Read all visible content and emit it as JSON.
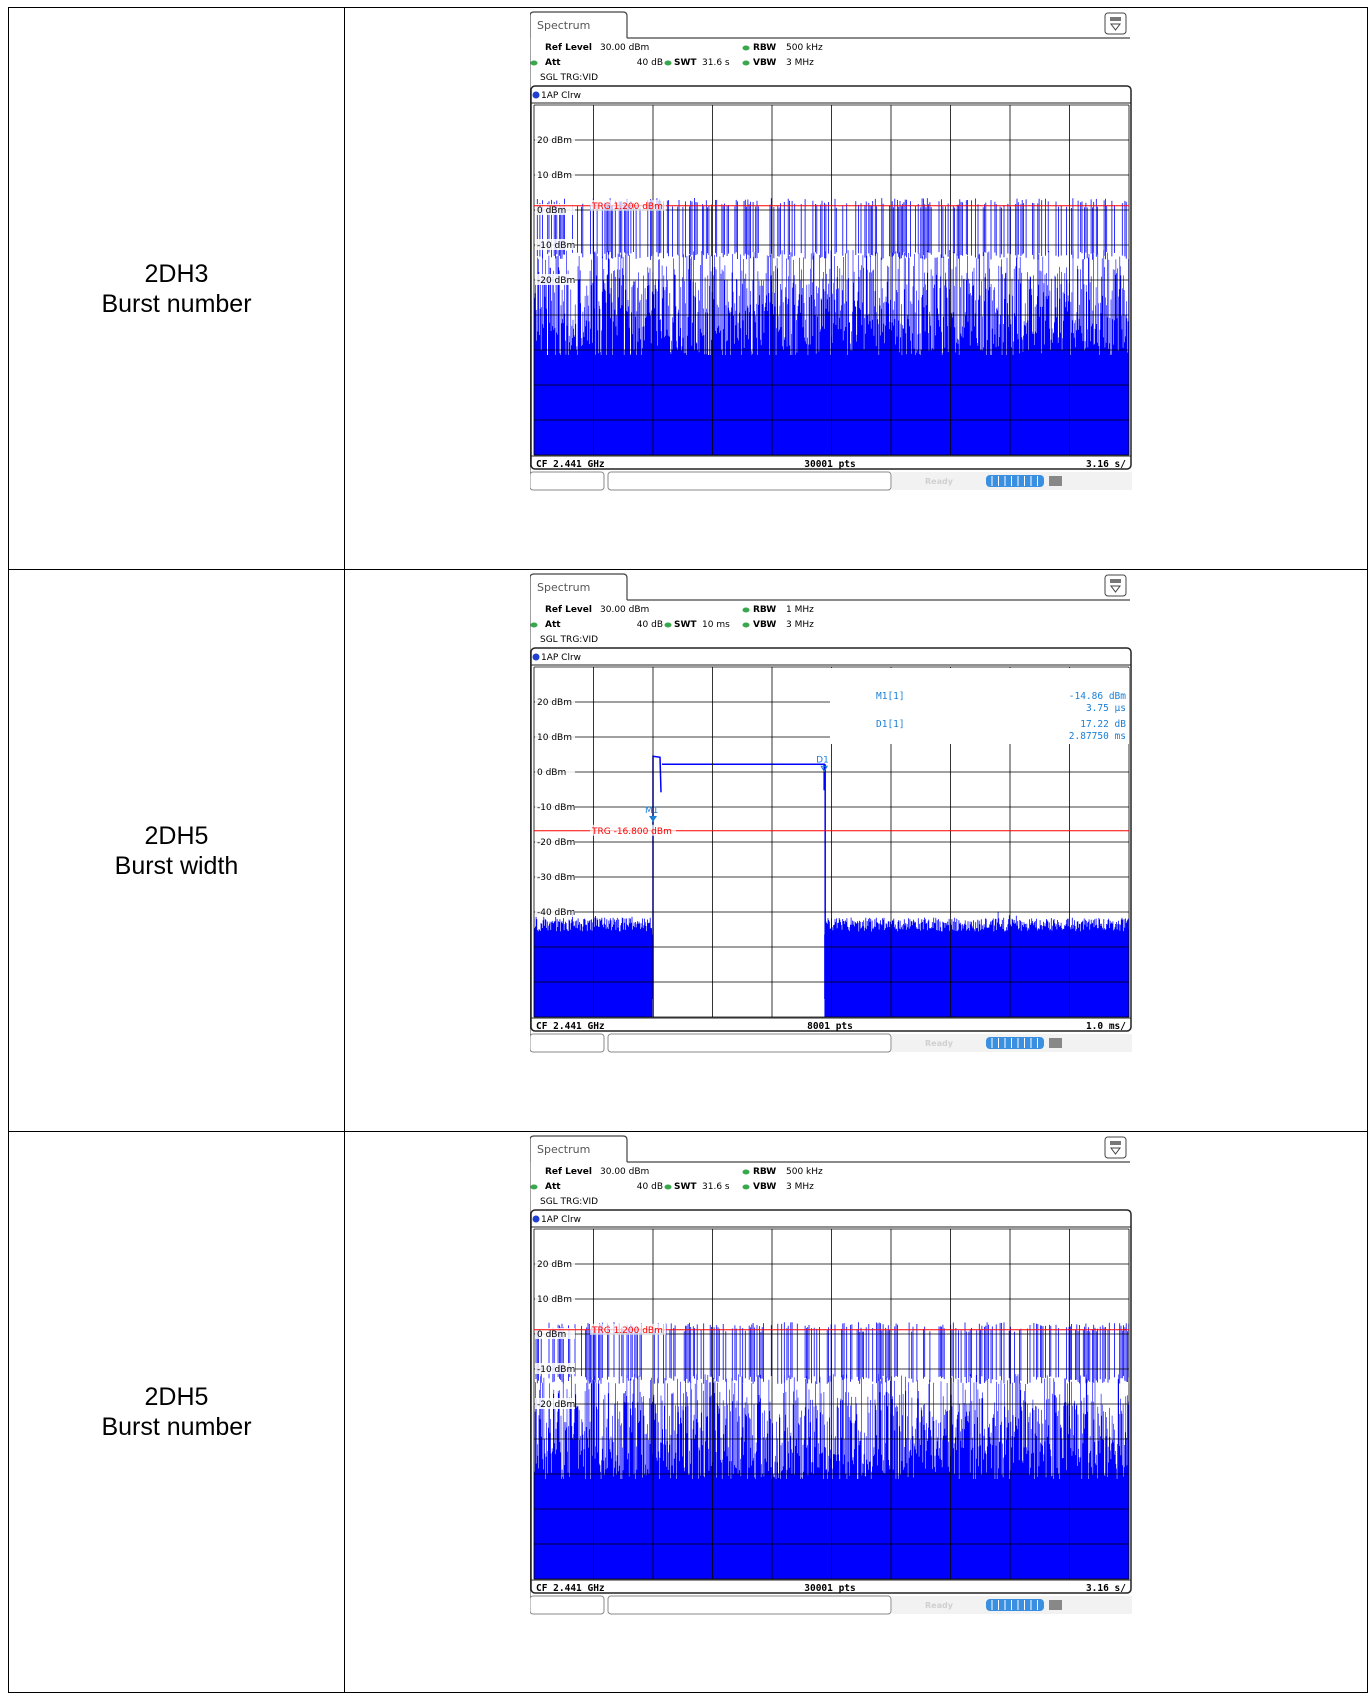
{
  "rows": [
    {
      "label_line1": "2DH3",
      "label_line2": "Burst number",
      "screen": {
        "tab": "Spectrum",
        "ref_level_label": "Ref Level",
        "ref_level_value": "30.00 dBm",
        "att_label": "Att",
        "att_value": "40 dB",
        "swt_label": "SWT",
        "swt_value": "31.6 s",
        "rbw_label": "RBW",
        "rbw_value": "500 kHz",
        "vbw_label": "VBW",
        "vbw_value": "3 MHz",
        "trigger_mode": "SGL TRG:VID",
        "trace_label": "1AP Clrw",
        "footer_left": "CF 2.441 GHz",
        "footer_center": "30001 pts",
        "footer_right": "3.16 s/",
        "status": "Ready"
      }
    },
    {
      "label_line1": "2DH5",
      "label_line2": "Burst width",
      "screen": {
        "tab": "Spectrum",
        "ref_level_label": "Ref Level",
        "ref_level_value": "30.00 dBm",
        "att_label": "Att",
        "att_value": "40 dB",
        "swt_label": "SWT",
        "swt_value": "10 ms",
        "rbw_label": "RBW",
        "rbw_value": "1 MHz",
        "vbw_label": "VBW",
        "vbw_value": "3 MHz",
        "trigger_mode": "SGL TRG:VID",
        "trace_label": "1AP Clrw",
        "footer_left": "CF 2.441 GHz",
        "footer_center": "8001 pts",
        "footer_right": "1.0 ms/",
        "status": "Ready",
        "marker_table": [
          {
            "name": "M1[1]",
            "value1": "-14.86 dBm",
            "value2": "3.75 µs"
          },
          {
            "name": "D1[1]",
            "value1": "17.22 dB",
            "value2": "2.87750 ms"
          }
        ]
      }
    },
    {
      "label_line1": "2DH5",
      "label_line2": "Burst number",
      "screen": {
        "tab": "Spectrum",
        "ref_level_label": "Ref Level",
        "ref_level_value": "30.00 dBm",
        "att_label": "Att",
        "att_value": "40 dB",
        "swt_label": "SWT",
        "swt_value": "31.6 s",
        "rbw_label": "RBW",
        "rbw_value": "500 kHz",
        "vbw_label": "VBW",
        "vbw_value": "3 MHz",
        "trigger_mode": "SGL TRG:VID",
        "trace_label": "1AP Clrw",
        "footer_left": "CF 2.441 GHz",
        "footer_center": "30001 pts",
        "footer_right": "3.16 s/",
        "status": "Ready"
      }
    }
  ],
  "chart_data": [
    {
      "type": "line",
      "ylim": [
        -70,
        30
      ],
      "y_tick_labels": [
        "20 dBm",
        "10 dBm",
        "0 dBm",
        "-10 dBm",
        "-20 dBm"
      ],
      "trigger_level_dbm": 1.2,
      "trigger_label": "TRG 1.200 dBm",
      "description": "dense bursts"
    },
    {
      "type": "line",
      "ylim": [
        -70,
        30
      ],
      "y_tick_labels": [
        "20 dBm",
        "10 dBm",
        "0 dBm",
        "-10 dBm",
        "-20 dBm",
        "-30 dBm",
        "-40 dBm"
      ],
      "trigger_level_dbm": -16.8,
      "trigger_label": "TRG -16.800 dBm",
      "burst_start_ms": 2.0,
      "burst_end_ms": 4.877,
      "burst_level_dbm": 2.2,
      "marker_labels": {
        "m1": "M1",
        "d1": "D1"
      },
      "noise_floor_dbm": -43
    },
    {
      "type": "line",
      "ylim": [
        -70,
        30
      ],
      "y_tick_labels": [
        "20 dBm",
        "10 dBm",
        "0 dBm",
        "-10 dBm",
        "-20 dBm"
      ],
      "trigger_level_dbm": 1.2,
      "trigger_label": "TRG 1.200 dBm"
    }
  ],
  "colors": {
    "trace": "#0000ff",
    "trigger": "#ff0000",
    "marker": "#1a7fd6",
    "grid": "#000000",
    "status_blue": "#3a8fe0",
    "green_dot": "#37a84b"
  }
}
